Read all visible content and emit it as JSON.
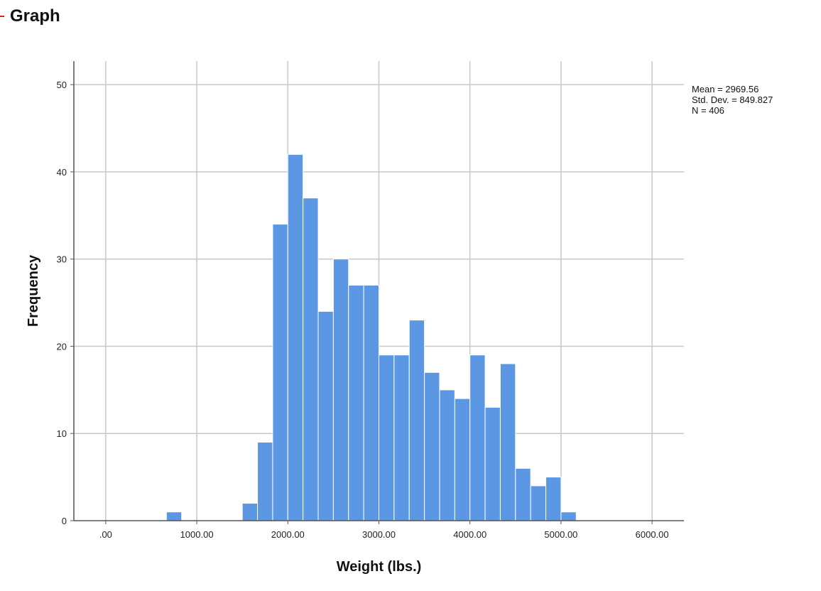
{
  "header": {
    "title": "Graph"
  },
  "chart_data": {
    "type": "bar",
    "xlabel": "Weight (lbs.)",
    "ylabel": "Frequency",
    "xlim": [
      -350,
      6350
    ],
    "ylim": [
      0,
      52.7
    ],
    "x_ticks": [
      0,
      1000,
      2000,
      3000,
      4000,
      5000,
      6000
    ],
    "x_tick_labels": [
      ".00",
      "1000.00",
      "2000.00",
      "3000.00",
      "4000.00",
      "5000.00",
      "6000.00"
    ],
    "y_ticks": [
      0,
      10,
      20,
      30,
      40,
      50
    ],
    "y_tick_labels": [
      "0",
      "10",
      "20",
      "30",
      "40",
      "50"
    ],
    "bin_width": 166.7,
    "bins": [
      {
        "start": 666.7,
        "count": 1
      },
      {
        "start": 1500.0,
        "count": 2
      },
      {
        "start": 1666.7,
        "count": 9
      },
      {
        "start": 1833.3,
        "count": 34
      },
      {
        "start": 2000.0,
        "count": 42
      },
      {
        "start": 2166.7,
        "count": 37
      },
      {
        "start": 2333.3,
        "count": 24
      },
      {
        "start": 2500.0,
        "count": 30
      },
      {
        "start": 2666.7,
        "count": 27
      },
      {
        "start": 2833.3,
        "count": 27
      },
      {
        "start": 3000.0,
        "count": 19
      },
      {
        "start": 3166.7,
        "count": 19
      },
      {
        "start": 3333.3,
        "count": 23
      },
      {
        "start": 3500.0,
        "count": 17
      },
      {
        "start": 3666.7,
        "count": 15
      },
      {
        "start": 3833.3,
        "count": 14
      },
      {
        "start": 4000.0,
        "count": 19
      },
      {
        "start": 4166.7,
        "count": 13
      },
      {
        "start": 4333.3,
        "count": 18
      },
      {
        "start": 4500.0,
        "count": 6
      },
      {
        "start": 4666.7,
        "count": 4
      },
      {
        "start": 4833.3,
        "count": 5
      },
      {
        "start": 5000.0,
        "count": 1
      }
    ],
    "bar_color": "#5b97e3",
    "bar_edge_color": "#ffffff",
    "grid": true,
    "grid_color": "#c8c8c8",
    "stats": {
      "mean": "Mean = 2969.56",
      "std_dev": "Std. Dev. = 849.827",
      "n": "N = 406"
    }
  }
}
